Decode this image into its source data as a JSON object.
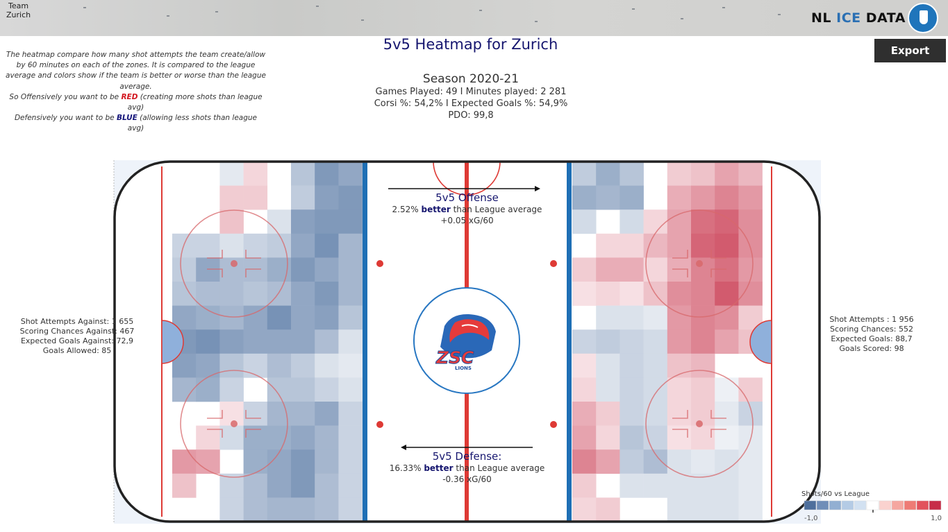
{
  "header": {
    "team_label_line1": "Team",
    "team_label_line2": "Zurich",
    "logo_text_nl": "NL",
    "logo_text_ice": "ICE",
    "logo_text_data": "DATA",
    "export_label": "Export"
  },
  "title": "5v5 Heatmap for Zurich",
  "stats": {
    "season": "Season 2020-21",
    "line1": "Games Played: 49 I Minutes played: 2 281",
    "line2": "Corsi %: 54,2% I Expected Goals %: 54,9%",
    "line3": "PDO: 99,8"
  },
  "explain": {
    "p1": "The heatmap compare how many shot attempts the team create/allow by 60 minutes on each of the zones. It is compared to the league average and colors show if the team is better or worse than the league average.",
    "p2_pre": "So Offensively you want to be ",
    "p2_red": "RED",
    "p2_post": "  (creating more shots than  league avg)",
    "p3_pre": "Defensively you want to be ",
    "p3_blue": "BLUE",
    "p3_post": "  (allowing less shots than  league avg)"
  },
  "defense_stats": {
    "line1": "Shot Attempts Against: 1 655",
    "line2": "Scoring Chances Against: 467",
    "line3": "Expected Goals Against: 72,9",
    "line4": "Goals Allowed: 85"
  },
  "offense_stats": {
    "line1": "Shot Attempts : 1 956",
    "line2": "Scoring Chances: 552",
    "line3": "Expected Goals: 88,7",
    "line4": "Goals Scored: 98"
  },
  "offense_box": {
    "title": "5v5 Offense",
    "pct": "2.52%",
    "word": "better",
    "rest": "than League average",
    "xg": "+0.05 xG/60"
  },
  "defense_box": {
    "title": "5v5 Defense:",
    "pct": "16.33%",
    "word": "better",
    "rest": "than League average",
    "xg": "-0.36 xG/60"
  },
  "legend": {
    "label": "Shots/60 vs League",
    "min": "-1,0",
    "max": "1,0",
    "colors": [
      "#4e6f9c",
      "#6f8eb8",
      "#92afd2",
      "#b4cbe5",
      "#d2e1f1",
      "#ffffff",
      "#fad2cf",
      "#f5a7a0",
      "#ee7b75",
      "#e2525c",
      "#c72c48"
    ]
  },
  "colors": {
    "title": "#16166f",
    "blue_line": "#1e6fb5",
    "red_line": "#de3a35",
    "board": "#222222"
  },
  "heatmap": {
    "defense_zone": [
      [
        0,
        0,
        -0.15,
        0.2,
        0,
        -0.4,
        -0.7,
        -0.6
      ],
      [
        0,
        0,
        0.25,
        0.25,
        0,
        -0.35,
        -0.65,
        -0.7
      ],
      [
        0,
        0,
        0.3,
        0,
        -0.2,
        -0.65,
        -0.7,
        -0.7
      ],
      [
        -0.3,
        -0.3,
        -0.2,
        -0.3,
        -0.35,
        -0.6,
        -0.75,
        -0.5
      ],
      [
        -0.35,
        -0.6,
        -0.45,
        -0.45,
        -0.55,
        -0.7,
        -0.6,
        -0.5
      ],
      [
        -0.4,
        -0.45,
        -0.45,
        -0.4,
        -0.45,
        -0.6,
        -0.7,
        -0.5
      ],
      [
        -0.6,
        -0.55,
        -0.5,
        -0.6,
        -0.75,
        -0.6,
        -0.65,
        -0.4
      ],
      [
        -0.7,
        -0.75,
        -0.65,
        -0.6,
        -0.6,
        -0.6,
        -0.45,
        -0.2
      ],
      [
        -0.65,
        -0.6,
        -0.4,
        -0.3,
        -0.45,
        -0.35,
        -0.2,
        -0.15
      ],
      [
        -0.5,
        -0.55,
        -0.3,
        0,
        -0.4,
        -0.4,
        -0.3,
        -0.2
      ],
      [
        0,
        0,
        0.15,
        -0.3,
        -0.5,
        -0.5,
        -0.6,
        -0.3
      ],
      [
        0,
        0.2,
        -0.25,
        -0.55,
        -0.55,
        -0.6,
        -0.5,
        -0.3
      ],
      [
        0.5,
        0.45,
        0,
        -0.55,
        -0.6,
        -0.7,
        -0.5,
        -0.3
      ],
      [
        0.3,
        0,
        -0.3,
        -0.45,
        -0.6,
        -0.7,
        -0.45,
        -0.3
      ],
      [
        0,
        0,
        -0.3,
        -0.45,
        -0.5,
        -0.5,
        -0.45,
        -0.3
      ]
    ],
    "offense_zone": [
      [
        -0.35,
        -0.55,
        -0.4,
        0,
        0.25,
        0.3,
        0.45,
        0.35
      ],
      [
        -0.55,
        -0.5,
        -0.55,
        0,
        0.4,
        0.5,
        0.6,
        0.5
      ],
      [
        -0.25,
        0,
        -0.25,
        0.2,
        0.45,
        0.7,
        0.75,
        0.55
      ],
      [
        0,
        0.2,
        0.2,
        0.35,
        0.45,
        0.75,
        0.8,
        0.55
      ],
      [
        0.25,
        0.4,
        0.4,
        0.2,
        0.4,
        0.6,
        0.7,
        0.5
      ],
      [
        0.15,
        0.2,
        0.15,
        0.3,
        0.55,
        0.6,
        0.8,
        0.55
      ],
      [
        0,
        -0.2,
        -0.2,
        -0.15,
        0.5,
        0.6,
        0.55,
        0.25
      ],
      [
        -0.3,
        -0.35,
        -0.3,
        -0.25,
        0.5,
        0.6,
        0.45,
        0.3
      ],
      [
        0.15,
        -0.2,
        -0.3,
        -0.25,
        0.3,
        0.35,
        0,
        0
      ],
      [
        0.2,
        -0.2,
        -0.3,
        -0.25,
        0.2,
        0.25,
        -0.1,
        0.25
      ],
      [
        0.4,
        0.25,
        -0.3,
        -0.25,
        0.2,
        0.25,
        -0.15,
        -0.3
      ],
      [
        0.45,
        0.2,
        -0.4,
        -0.3,
        0.15,
        0.2,
        -0.1,
        -0.15
      ],
      [
        0.6,
        0.45,
        -0.35,
        -0.45,
        -0.2,
        -0.15,
        -0.2,
        -0.15
      ],
      [
        0.25,
        0,
        -0.2,
        -0.2,
        -0.2,
        -0.2,
        -0.2,
        -0.15
      ],
      [
        0.2,
        0.25,
        0,
        0,
        -0.2,
        -0.2,
        -0.2,
        -0.15
      ]
    ]
  }
}
